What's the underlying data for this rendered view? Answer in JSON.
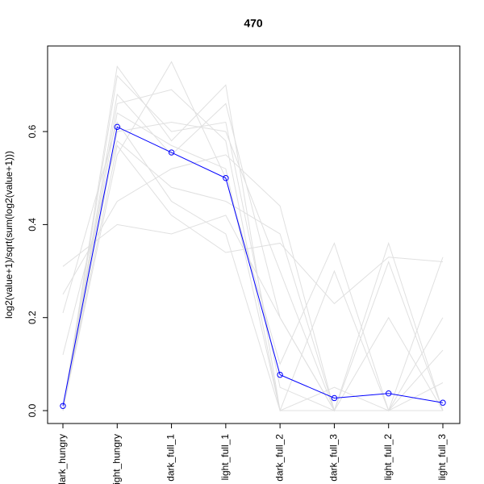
{
  "chart_data": {
    "type": "line",
    "title": "470",
    "y_label": "log2(value+1)/sqrt(sum(log2(value+1)))",
    "categories": [
      "dark_hungry",
      "light_hungry",
      "dark_full_1",
      "light_full_1",
      "dark_full_2",
      "dark_full_3",
      "light_full_2",
      "light_full_3"
    ],
    "ylim": [
      -0.0277,
      0.784
    ],
    "yticks": [
      {
        "value": 0,
        "label": "0.0"
      },
      0.2,
      0.4,
      0.6
    ],
    "series": [
      {
        "color": "#e0e0e0",
        "values": [
          0.0,
          0.72,
          0.6,
          0.62,
          0.05,
          0.0,
          0.0,
          0.0
        ]
      },
      {
        "color": "#e0e0e0",
        "values": [
          0.31,
          0.4,
          0.38,
          0.42,
          0.2,
          0.0,
          0.36,
          0.0
        ]
      },
      {
        "color": "#e0e0e0",
        "values": [
          0.0,
          0.66,
          0.69,
          0.58,
          0.0,
          0.0,
          0.0,
          0.0
        ]
      },
      {
        "color": "#e0e0e0",
        "values": [
          0.12,
          0.58,
          0.48,
          0.45,
          0.38,
          0.0,
          0.32,
          0.0
        ]
      },
      {
        "color": "#e0e0e0",
        "values": [
          0.0,
          0.55,
          0.75,
          0.5,
          0.1,
          0.36,
          0.0,
          0.33
        ]
      },
      {
        "color": "#e0e0e0",
        "values": [
          0.25,
          0.45,
          0.52,
          0.55,
          0.44,
          0.0,
          0.0,
          0.2
        ]
      },
      {
        "color": "#e0e0e0",
        "values": [
          0.0,
          0.74,
          0.58,
          0.7,
          0.0,
          0.05,
          0.0,
          0.0
        ]
      },
      {
        "color": "#e0e0e0",
        "values": [
          0.0,
          0.6,
          0.62,
          0.6,
          0.3,
          0.0,
          0.0,
          0.13
        ]
      },
      {
        "color": "#e0e0e0",
        "values": [
          0.21,
          0.62,
          0.45,
          0.38,
          0.0,
          0.3,
          0.0,
          0.0
        ]
      },
      {
        "color": "#e0e0e0",
        "values": [
          0.0,
          0.68,
          0.55,
          0.66,
          0.2,
          0.0,
          0.0,
          0.06
        ]
      },
      {
        "color": "#e0e0e0",
        "values": [
          0.0,
          0.57,
          0.42,
          0.34,
          0.36,
          0.23,
          0.33,
          0.32
        ]
      },
      {
        "color": "#e0e0e0",
        "values": [
          0.0,
          0.64,
          0.57,
          0.52,
          0.0,
          0.0,
          0.2,
          0.0
        ]
      },
      {
        "color": "#0000ff",
        "values": [
          0.01,
          0.61,
          0.555,
          0.5,
          0.077,
          0.027,
          0.037,
          0.017
        ]
      }
    ]
  }
}
